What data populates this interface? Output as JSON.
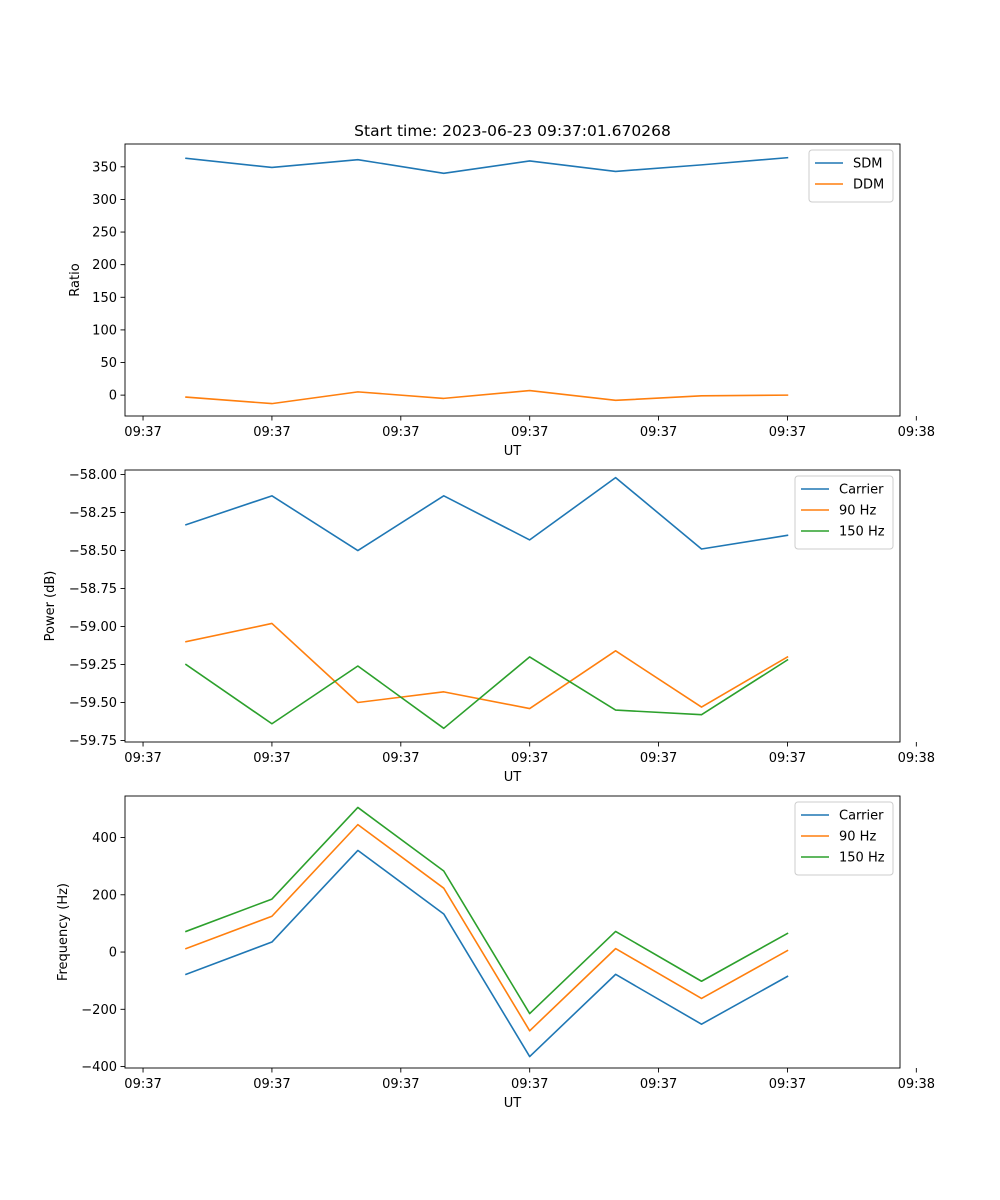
{
  "figure": {
    "title": "Start time: 2023-06-23 09:37:01.670268"
  },
  "colors": {
    "blue": "#1f77b4",
    "orange": "#ff7f0e",
    "green": "#2ca02c"
  },
  "chart_data": [
    {
      "type": "line",
      "title": "Start time: 2023-06-23 09:37:01.670268",
      "xlabel": "UT",
      "ylabel": "Ratio",
      "x": [
        1,
        2,
        3,
        4,
        5,
        6,
        7,
        8
      ],
      "xlim": [
        0.29,
        9.31
      ],
      "xticks": [
        0.5,
        2.0,
        3.5,
        5.0,
        6.5,
        8.0,
        9.5
      ],
      "xtick_labels": [
        "09:37",
        "09:37",
        "09:37",
        "09:37",
        "09:37",
        "09:37",
        "09:38"
      ],
      "ylim": [
        -32,
        385
      ],
      "yticks": [
        0,
        50,
        100,
        150,
        200,
        250,
        300,
        350
      ],
      "ytick_labels": [
        "0",
        "50",
        "100",
        "150",
        "200",
        "250",
        "300",
        "350"
      ],
      "legend_position": "upper-right",
      "grid": false,
      "series": [
        {
          "name": "SDM",
          "color": "#1f77b4",
          "values": [
            363,
            349,
            361,
            340,
            359,
            343,
            353,
            364
          ]
        },
        {
          "name": "DDM",
          "color": "#ff7f0e",
          "values": [
            -3,
            -13,
            5,
            -5,
            7,
            -8,
            -1,
            0
          ]
        }
      ]
    },
    {
      "type": "line",
      "xlabel": "UT",
      "ylabel": "Power (dB)",
      "x": [
        1,
        2,
        3,
        4,
        5,
        6,
        7,
        8
      ],
      "xlim": [
        0.29,
        9.31
      ],
      "xticks": [
        0.5,
        2.0,
        3.5,
        5.0,
        6.5,
        8.0,
        9.5
      ],
      "xtick_labels": [
        "09:37",
        "09:37",
        "09:37",
        "09:37",
        "09:37",
        "09:37",
        "09:38"
      ],
      "ylim": [
        -59.76,
        -57.97
      ],
      "yticks": [
        -58.0,
        -58.25,
        -58.5,
        -58.75,
        -59.0,
        -59.25,
        -59.5,
        -59.75
      ],
      "ytick_labels": [
        "−58.00",
        "−58.25",
        "−58.50",
        "−58.75",
        "−59.00",
        "−59.25",
        "−59.50",
        "−59.75"
      ],
      "legend_position": "upper-right",
      "grid": false,
      "series": [
        {
          "name": "Carrier",
          "color": "#1f77b4",
          "values": [
            -58.33,
            -58.14,
            -58.5,
            -58.14,
            -58.43,
            -58.02,
            -58.49,
            -58.4
          ]
        },
        {
          "name": "90 Hz",
          "color": "#ff7f0e",
          "values": [
            -59.1,
            -58.98,
            -59.5,
            -59.43,
            -59.54,
            -59.16,
            -59.53,
            -59.2
          ]
        },
        {
          "name": "150 Hz",
          "color": "#2ca02c",
          "values": [
            -59.25,
            -59.64,
            -59.26,
            -59.67,
            -59.2,
            -59.55,
            -59.58,
            -59.22
          ]
        }
      ]
    },
    {
      "type": "line",
      "xlabel": "UT",
      "ylabel": "Frequency (Hz)",
      "x": [
        1,
        2,
        3,
        4,
        5,
        6,
        7,
        8
      ],
      "xlim": [
        0.29,
        9.31
      ],
      "xticks": [
        0.5,
        2.0,
        3.5,
        5.0,
        6.5,
        8.0,
        9.5
      ],
      "xtick_labels": [
        "09:37",
        "09:37",
        "09:37",
        "09:37",
        "09:37",
        "09:37",
        "09:38"
      ],
      "ylim": [
        -405,
        545
      ],
      "yticks": [
        -400,
        -200,
        0,
        200,
        400
      ],
      "ytick_labels": [
        "−400",
        "−200",
        "0",
        "200",
        "400"
      ],
      "legend_position": "upper-right",
      "grid": false,
      "series": [
        {
          "name": "Carrier",
          "color": "#1f77b4",
          "values": [
            -78,
            35,
            355,
            133,
            -365,
            -78,
            -252,
            -85
          ]
        },
        {
          "name": "90 Hz",
          "color": "#ff7f0e",
          "values": [
            12,
            125,
            445,
            223,
            -275,
            12,
            -162,
            5
          ]
        },
        {
          "name": "150 Hz",
          "color": "#2ca02c",
          "values": [
            72,
            185,
            505,
            283,
            -215,
            72,
            -102,
            65
          ]
        }
      ]
    }
  ]
}
